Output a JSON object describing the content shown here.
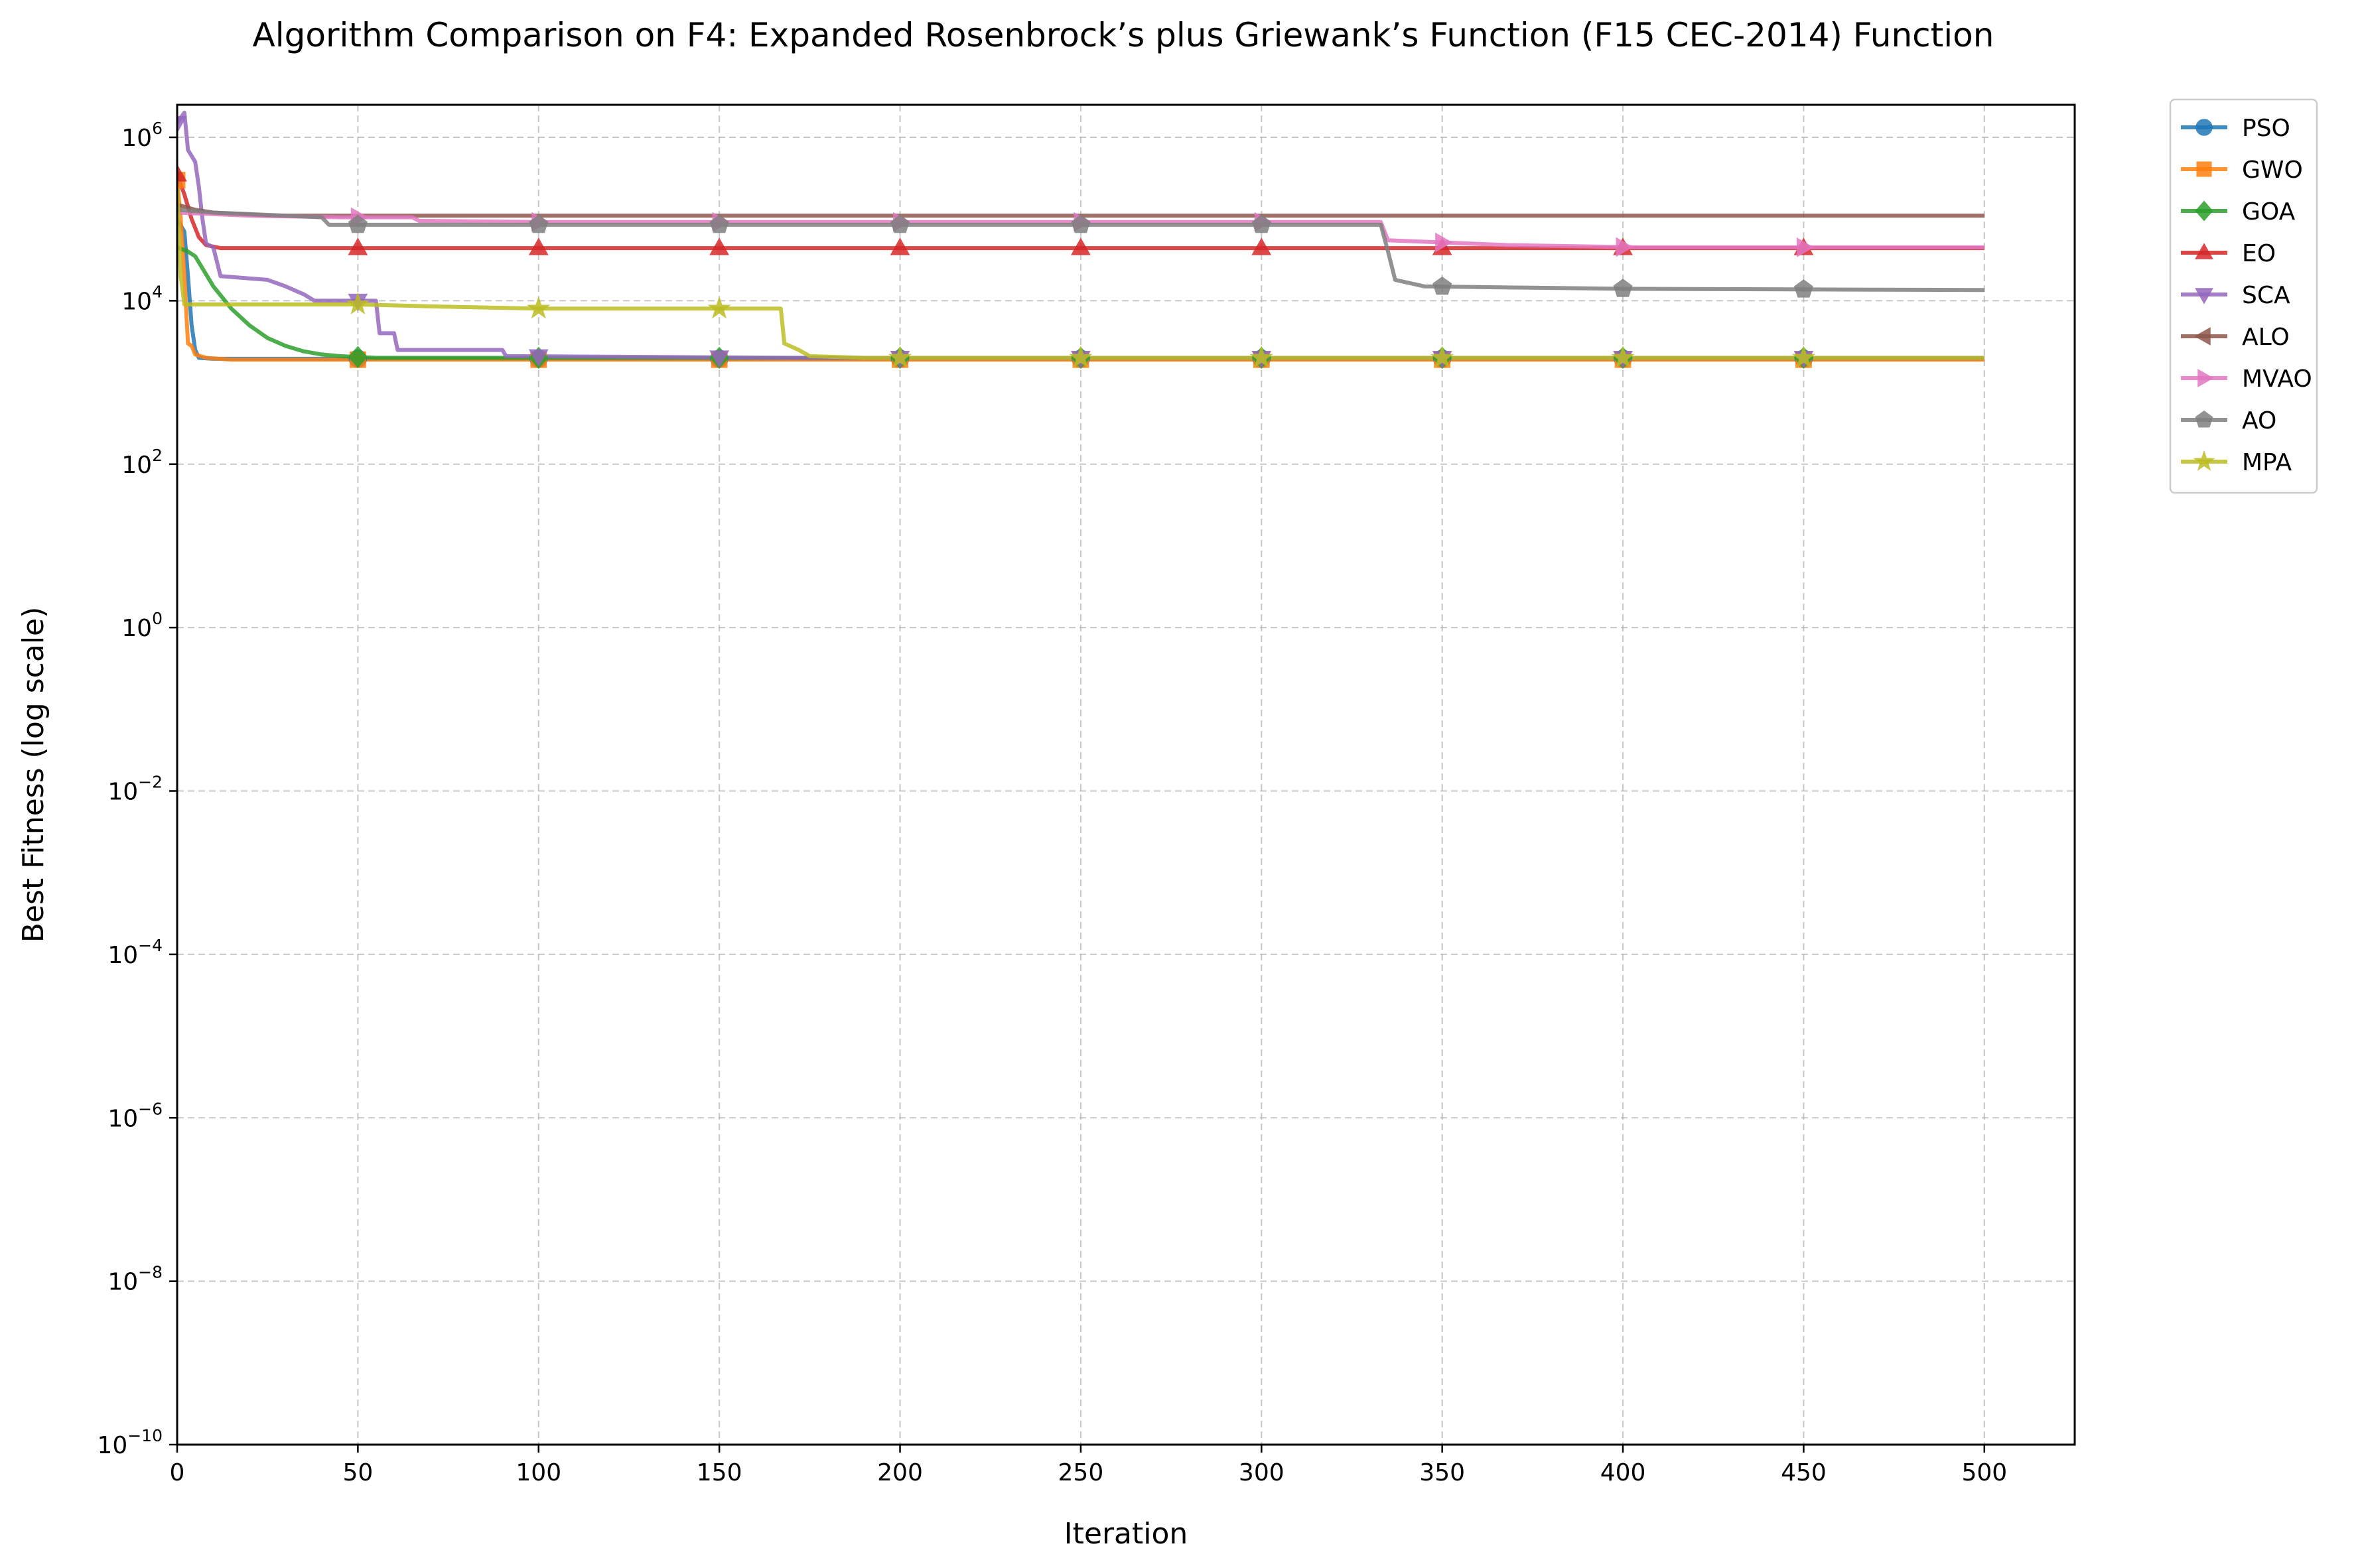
{
  "chart_data": {
    "type": "line",
    "title": "Algorithm Comparison on F4: Expanded Rosenbrock’s plus Griewank’s Function (F15 CEC-2014) Function",
    "xlabel": "Iteration",
    "ylabel": "Best Fitness (log scale)",
    "xscale": "linear",
    "yscale": "log",
    "xlim": [
      0,
      525
    ],
    "ylim": [
      1e-10,
      2500000
    ],
    "x_ticks": [
      0,
      50,
      100,
      150,
      200,
      250,
      300,
      350,
      400,
      450,
      500
    ],
    "x_tick_labels": [
      "0",
      "50",
      "100",
      "150",
      "200",
      "250",
      "300",
      "350",
      "400",
      "450",
      "500"
    ],
    "y_ticks": [
      {
        "value": 1e-10,
        "base": "10",
        "exp": "−10"
      },
      {
        "value": 1e-08,
        "base": "10",
        "exp": "−8"
      },
      {
        "value": 1e-06,
        "base": "10",
        "exp": "−6"
      },
      {
        "value": 0.0001,
        "base": "10",
        "exp": "−4"
      },
      {
        "value": 0.01,
        "base": "10",
        "exp": "−2"
      },
      {
        "value": 1,
        "base": "10",
        "exp": "0"
      },
      {
        "value": 100,
        "base": "10",
        "exp": "2"
      },
      {
        "value": 10000,
        "base": "10",
        "exp": "4"
      },
      {
        "value": 1000000,
        "base": "10",
        "exp": "6"
      }
    ],
    "grid": true,
    "legend_position": "outside-top-right",
    "series": [
      {
        "name": "PSO",
        "color": "#1f77b4",
        "marker": "circle",
        "points": [
          [
            0,
            100000
          ],
          [
            2,
            70000
          ],
          [
            3,
            20000
          ],
          [
            4,
            5000
          ],
          [
            5,
            2500
          ],
          [
            6,
            2000
          ],
          [
            10,
            1950
          ],
          [
            50,
            1950
          ],
          [
            100,
            1950
          ],
          [
            500,
            1950
          ]
        ],
        "marker_x": [
          50,
          100,
          150,
          200,
          250,
          300,
          350,
          400,
          450
        ]
      },
      {
        "name": "GWO",
        "color": "#ff7f0e",
        "marker": "square",
        "points": [
          [
            0,
            300000
          ],
          [
            1,
            100000
          ],
          [
            2,
            20000
          ],
          [
            3,
            3000
          ],
          [
            4,
            2800
          ],
          [
            5,
            2200
          ],
          [
            8,
            2000
          ],
          [
            15,
            1900
          ],
          [
            100,
            1900
          ],
          [
            500,
            1900
          ]
        ],
        "marker_x": [
          0,
          50,
          100,
          150,
          200,
          250,
          300,
          350,
          400,
          450
        ]
      },
      {
        "name": "GOA",
        "color": "#2ca02c",
        "marker": "diamond",
        "points": [
          [
            0,
            45000
          ],
          [
            3,
            40000
          ],
          [
            5,
            35000
          ],
          [
            7,
            25000
          ],
          [
            10,
            15000
          ],
          [
            15,
            8000
          ],
          [
            20,
            5000
          ],
          [
            25,
            3500
          ],
          [
            30,
            2800
          ],
          [
            35,
            2400
          ],
          [
            40,
            2200
          ],
          [
            45,
            2100
          ],
          [
            55,
            2000
          ],
          [
            100,
            2000
          ],
          [
            500,
            2000
          ]
        ],
        "marker_x": [
          50,
          100,
          150,
          200,
          250,
          300,
          350,
          400,
          450
        ]
      },
      {
        "name": "EO",
        "color": "#d62728",
        "marker": "triangle-up",
        "points": [
          [
            0,
            350000
          ],
          [
            2,
            200000
          ],
          [
            4,
            100000
          ],
          [
            6,
            60000
          ],
          [
            8,
            48000
          ],
          [
            12,
            44000
          ],
          [
            500,
            44000
          ]
        ],
        "marker_x": [
          0,
          50,
          100,
          150,
          200,
          250,
          300,
          350,
          400,
          450
        ]
      },
      {
        "name": "SCA",
        "color": "#9467bd",
        "marker": "triangle-down",
        "points": [
          [
            0,
            1500000
          ],
          [
            2,
            2000000
          ],
          [
            3,
            700000
          ],
          [
            5,
            500000
          ],
          [
            6,
            250000
          ],
          [
            7,
            100000
          ],
          [
            8,
            50000
          ],
          [
            10,
            45000
          ],
          [
            12,
            20000
          ],
          [
            25,
            18000
          ],
          [
            30,
            15000
          ],
          [
            35,
            12000
          ],
          [
            38,
            10000
          ],
          [
            55,
            10000
          ],
          [
            56,
            4000
          ],
          [
            60,
            4000
          ],
          [
            61,
            2500
          ],
          [
            90,
            2500
          ],
          [
            91,
            2100
          ],
          [
            170,
            2000
          ],
          [
            500,
            2000
          ]
        ],
        "marker_x": [
          0,
          50,
          100,
          150,
          200,
          250,
          300,
          350,
          400,
          450
        ]
      },
      {
        "name": "ALO",
        "color": "#8c564b",
        "marker": "triangle-left",
        "points": [
          [
            0,
            150000
          ],
          [
            5,
            130000
          ],
          [
            10,
            120000
          ],
          [
            25,
            110000
          ],
          [
            500,
            110000
          ]
        ],
        "marker_x": []
      },
      {
        "name": "MVAO",
        "color": "#e377c2",
        "marker": "triangle-right",
        "points": [
          [
            0,
            120000
          ],
          [
            20,
            110000
          ],
          [
            45,
            105000
          ],
          [
            65,
            105000
          ],
          [
            67,
            95000
          ],
          [
            100,
            92000
          ],
          [
            333,
            92000
          ],
          [
            335,
            55000
          ],
          [
            368,
            48000
          ],
          [
            405,
            45000
          ],
          [
            500,
            45000
          ]
        ],
        "marker_x": [
          50,
          100,
          150,
          200,
          250,
          300,
          350,
          400,
          450
        ]
      },
      {
        "name": "AO",
        "color": "#7f7f7f",
        "marker": "pentagon",
        "points": [
          [
            0,
            130000
          ],
          [
            10,
            120000
          ],
          [
            30,
            110000
          ],
          [
            40,
            105000
          ],
          [
            42,
            85000
          ],
          [
            333,
            85000
          ],
          [
            335,
            40000
          ],
          [
            337,
            18000
          ],
          [
            345,
            15000
          ],
          [
            370,
            14500
          ],
          [
            400,
            14000
          ],
          [
            500,
            13500
          ]
        ],
        "marker_x": [
          50,
          100,
          150,
          200,
          250,
          300,
          350,
          400,
          450
        ]
      },
      {
        "name": "MPA",
        "color": "#bcbd22",
        "marker": "star",
        "points": [
          [
            0,
            250000
          ],
          [
            1,
            20000
          ],
          [
            2,
            9000
          ],
          [
            50,
            9000
          ],
          [
            72,
            8500
          ],
          [
            100,
            8000
          ],
          [
            167,
            8000
          ],
          [
            168,
            3000
          ],
          [
            172,
            2500
          ],
          [
            175,
            2100
          ],
          [
            190,
            2000
          ],
          [
            500,
            2000
          ]
        ],
        "marker_x": [
          50,
          100,
          150,
          200,
          250,
          300,
          350,
          400,
          450
        ]
      }
    ]
  }
}
